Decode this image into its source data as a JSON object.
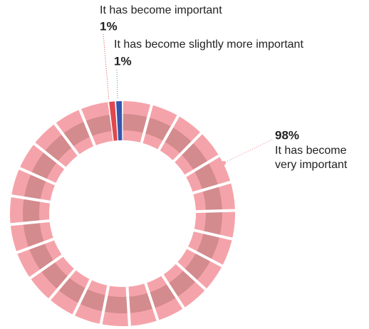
{
  "chart_data": {
    "type": "donut",
    "categories": [
      "It has become very important",
      "It has become important",
      "It has become slightly more important"
    ],
    "values": [
      98,
      1,
      1
    ],
    "value_labels": [
      "98%",
      "1%",
      "1%"
    ],
    "colors": [
      "#f5a3aa",
      "#e0484d",
      "#3556ad"
    ]
  }
}
